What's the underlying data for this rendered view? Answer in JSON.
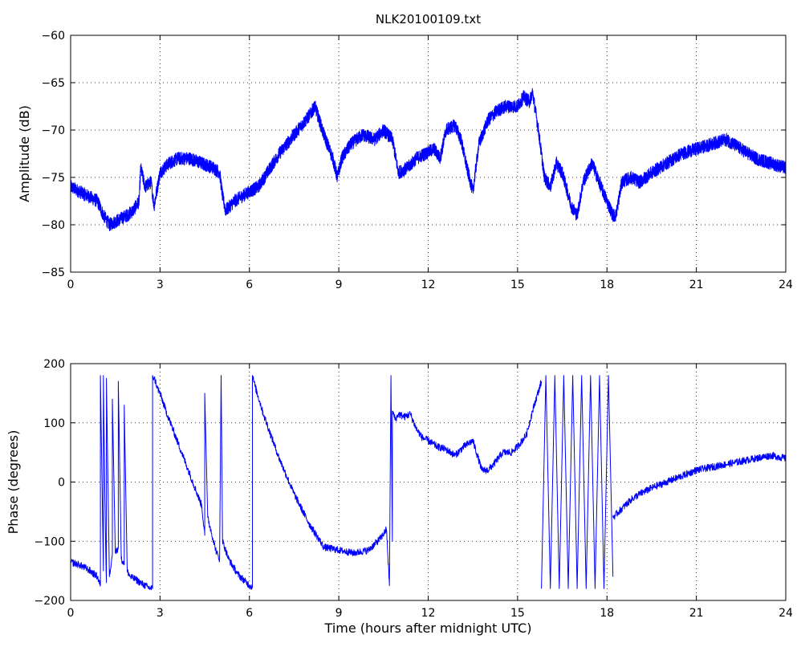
{
  "chart_data": [
    {
      "type": "line",
      "title": "NLK20100109.txt",
      "xlabel": "",
      "ylabel": "Amplitude (dB)",
      "xlim": [
        0,
        24
      ],
      "ylim": [
        -85,
        -60
      ],
      "xticks": [
        0,
        3,
        6,
        9,
        12,
        15,
        18,
        21,
        24
      ],
      "yticks": [
        -85,
        -80,
        -75,
        -70,
        -65,
        -60
      ],
      "grid": true,
      "line_color": "#0000ff",
      "series": [
        {
          "x": [
            0,
            0.3,
            0.6,
            0.9,
            1.1,
            1.3,
            1.6,
            1.9,
            2.1,
            2.3,
            2.35,
            2.5,
            2.7,
            2.8,
            3.0,
            3.3,
            3.6,
            4.0,
            4.4,
            4.8,
            5.0,
            5.1,
            5.2,
            5.5,
            6.0,
            6.3,
            6.6,
            7.0,
            7.5,
            8.0,
            8.2,
            8.5,
            8.8,
            8.95,
            9.1,
            9.4,
            9.8,
            10.2,
            10.5,
            10.8,
            11.0,
            11.3,
            11.6,
            11.9,
            12.2,
            12.4,
            12.6,
            12.9,
            13.1,
            13.3,
            13.5,
            13.7,
            14.0,
            14.3,
            14.6,
            15.0,
            15.2,
            15.4,
            15.5,
            15.7,
            15.9,
            16.1,
            16.3,
            16.5,
            16.8,
            17.0,
            17.2,
            17.5,
            17.8,
            18.0,
            18.2,
            18.3,
            18.5,
            18.8,
            19.1,
            19.5,
            20.0,
            20.5,
            21.0,
            21.5,
            22.0,
            22.5,
            23.0,
            23.5,
            24.0
          ],
          "values": [
            -76.0,
            -76.5,
            -77.0,
            -77.5,
            -79.0,
            -80.0,
            -79.5,
            -79.0,
            -78.5,
            -77.5,
            -74.0,
            -76.0,
            -75.5,
            -78.0,
            -74.5,
            -73.5,
            -73.0,
            -73.0,
            -73.5,
            -74.0,
            -74.5,
            -77.0,
            -78.5,
            -77.5,
            -76.5,
            -76.0,
            -74.5,
            -72.5,
            -70.5,
            -68.5,
            -67.5,
            -70.5,
            -73.0,
            -75.0,
            -73.0,
            -71.5,
            -70.5,
            -71.0,
            -70.0,
            -71.0,
            -74.5,
            -74.0,
            -73.0,
            -72.5,
            -72.0,
            -73.0,
            -70.0,
            -69.5,
            -71.0,
            -74.0,
            -76.5,
            -71.5,
            -69.0,
            -68.0,
            -67.5,
            -67.5,
            -66.5,
            -67.0,
            -66.0,
            -70.0,
            -75.0,
            -76.0,
            -73.5,
            -74.5,
            -78.0,
            -79.0,
            -75.5,
            -73.5,
            -76.0,
            -77.5,
            -79.0,
            -79.0,
            -75.5,
            -75.0,
            -75.5,
            -74.5,
            -73.5,
            -72.5,
            -72.0,
            -71.5,
            -71.0,
            -72.0,
            -73.0,
            -73.5,
            -74.0
          ]
        }
      ]
    },
    {
      "type": "line",
      "title": "",
      "xlabel": "Time (hours after midnight UTC)",
      "ylabel": "Phase (degrees)",
      "xlim": [
        0,
        24
      ],
      "ylim": [
        -200,
        200
      ],
      "xticks": [
        0,
        3,
        6,
        9,
        12,
        15,
        18,
        21,
        24
      ],
      "yticks": [
        -200,
        -100,
        0,
        100,
        200
      ],
      "grid": true,
      "line_color": "#0000ff",
      "series": [
        {
          "x": [
            0,
            0.3,
            0.6,
            0.9,
            1.0,
            1.0,
            1.1,
            1.1,
            1.15,
            1.2,
            1.2,
            1.3,
            1.4,
            1.4,
            1.5,
            1.6,
            1.6,
            1.7,
            1.8,
            1.8,
            1.9,
            2.0,
            2.2,
            2.4,
            2.6,
            2.75,
            2.75,
            2.8,
            2.85,
            2.9,
            3.0,
            3.2,
            3.5,
            3.8,
            4.1,
            4.4,
            4.5,
            4.5,
            4.6,
            4.7,
            4.8,
            4.9,
            5.0,
            5.05,
            5.1,
            5.3,
            5.6,
            5.9,
            6.1,
            6.1,
            6.2,
            6.5,
            7.0,
            7.5,
            8.0,
            8.5,
            9.0,
            9.5,
            10.0,
            10.4,
            10.6,
            10.7,
            10.75,
            10.8,
            10.8,
            10.9,
            11.0,
            11.2,
            11.4,
            11.6,
            11.8,
            12.0,
            12.3,
            12.6,
            12.9,
            13.2,
            13.5,
            13.8,
            14.0,
            14.2,
            14.5,
            14.8,
            15.0,
            15.3,
            15.5,
            15.8
          ],
          "values": [
            -135,
            -140,
            -148,
            -160,
            -175,
            180,
            -150,
            180,
            -30,
            -170,
            175,
            -160,
            -120,
            140,
            -120,
            -110,
            170,
            -130,
            -140,
            130,
            -150,
            -160,
            -165,
            -172,
            -178,
            -180,
            180,
            175,
            170,
            160,
            150,
            120,
            80,
            40,
            0,
            -40,
            -90,
            150,
            -60,
            -80,
            -100,
            -120,
            -130,
            180,
            -100,
            -130,
            -155,
            -170,
            -178,
            180,
            160,
            110,
            40,
            -20,
            -70,
            -110,
            -115,
            -120,
            -115,
            -95,
            -80,
            -175,
            180,
            -100,
            120,
            105,
            115,
            110,
            115,
            90,
            75,
            70,
            60,
            55,
            45,
            60,
            70,
            20,
            20,
            30,
            50,
            50,
            60,
            80,
            120,
            170
          ]
        },
        {
          "x": [
            15.8,
            15.95,
            16.1,
            16.25,
            16.4,
            16.55,
            16.7,
            16.85,
            17.0,
            17.15,
            17.3,
            17.45,
            17.6,
            17.75,
            17.9,
            18.05,
            18.2
          ],
          "values": [
            -180,
            180,
            -180,
            180,
            -180,
            180,
            -180,
            180,
            -180,
            180,
            -180,
            180,
            -180,
            180,
            -180,
            180,
            -160
          ]
        },
        {
          "x": [
            18.2,
            18.5,
            18.8,
            19.1,
            19.5,
            20.0,
            20.5,
            21.0,
            21.5,
            22.0,
            22.5,
            23.0,
            23.5,
            24.0
          ],
          "values": [
            -60,
            -45,
            -30,
            -20,
            -10,
            0,
            10,
            20,
            25,
            30,
            35,
            40,
            45,
            40
          ]
        }
      ]
    }
  ]
}
